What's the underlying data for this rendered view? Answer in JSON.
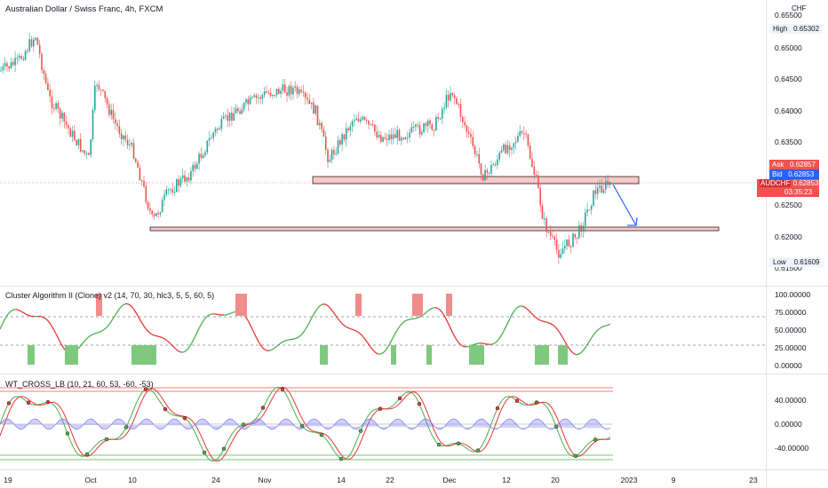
{
  "header": {
    "symbol_title": "Australian Dollar / Swiss Franc, 4h, FXCM",
    "currency": "CHF"
  },
  "price_axis": {
    "ticks": [
      "0.65500",
      "0.65000",
      "0.64500",
      "0.64000",
      "0.63500",
      "0.62500",
      "0.62000",
      "0.61500"
    ],
    "high_label": "High",
    "high_value": "0.65302",
    "low_label": "Low",
    "low_value": "0.61609",
    "ask_label": "Ask",
    "ask_value": "0.62857",
    "bid_label": "Bid",
    "bid_value": "0.62853",
    "symbol_tag": "AUDCHF",
    "last_value": "0.62853",
    "countdown": "03:35:23"
  },
  "indicator1": {
    "title": "Cluster Algorithm II (Clone) v2 (14, 70, 30, hlc3, 5, 5, 60, 5)",
    "ticks": [
      "100.00000",
      "75.00000",
      "50.00000",
      "25.00000",
      "0.00000"
    ]
  },
  "indicator2": {
    "title": "WT_CROSS_LB (10, 21, 60, 53, -60, -53)",
    "ticks": [
      "40.00000",
      "0.00000",
      "-40.00000"
    ]
  },
  "time_axis": {
    "labels": [
      "19",
      "Oct",
      "10",
      "24",
      "Nov",
      "14",
      "22",
      "Dec",
      "12",
      "20",
      "2023",
      "9",
      "23"
    ]
  },
  "colors": {
    "up_candle": "#26a69a",
    "down_candle": "#ef5350",
    "zone_fill": "#f8c9c9",
    "arrow": "#2962ff",
    "osc_up": "#4caf50",
    "osc_down": "#e53935"
  },
  "chart_data": {
    "type": "candlestick",
    "ylim": [
      0.614,
      0.656
    ],
    "high": 0.65302,
    "low": 0.61609,
    "last": 0.62853,
    "resistance_zone": [
      0.6285,
      0.6295
    ],
    "support_zone": [
      0.621,
      0.6215
    ],
    "projection": "down arrow from resistance zone toward support zone"
  }
}
